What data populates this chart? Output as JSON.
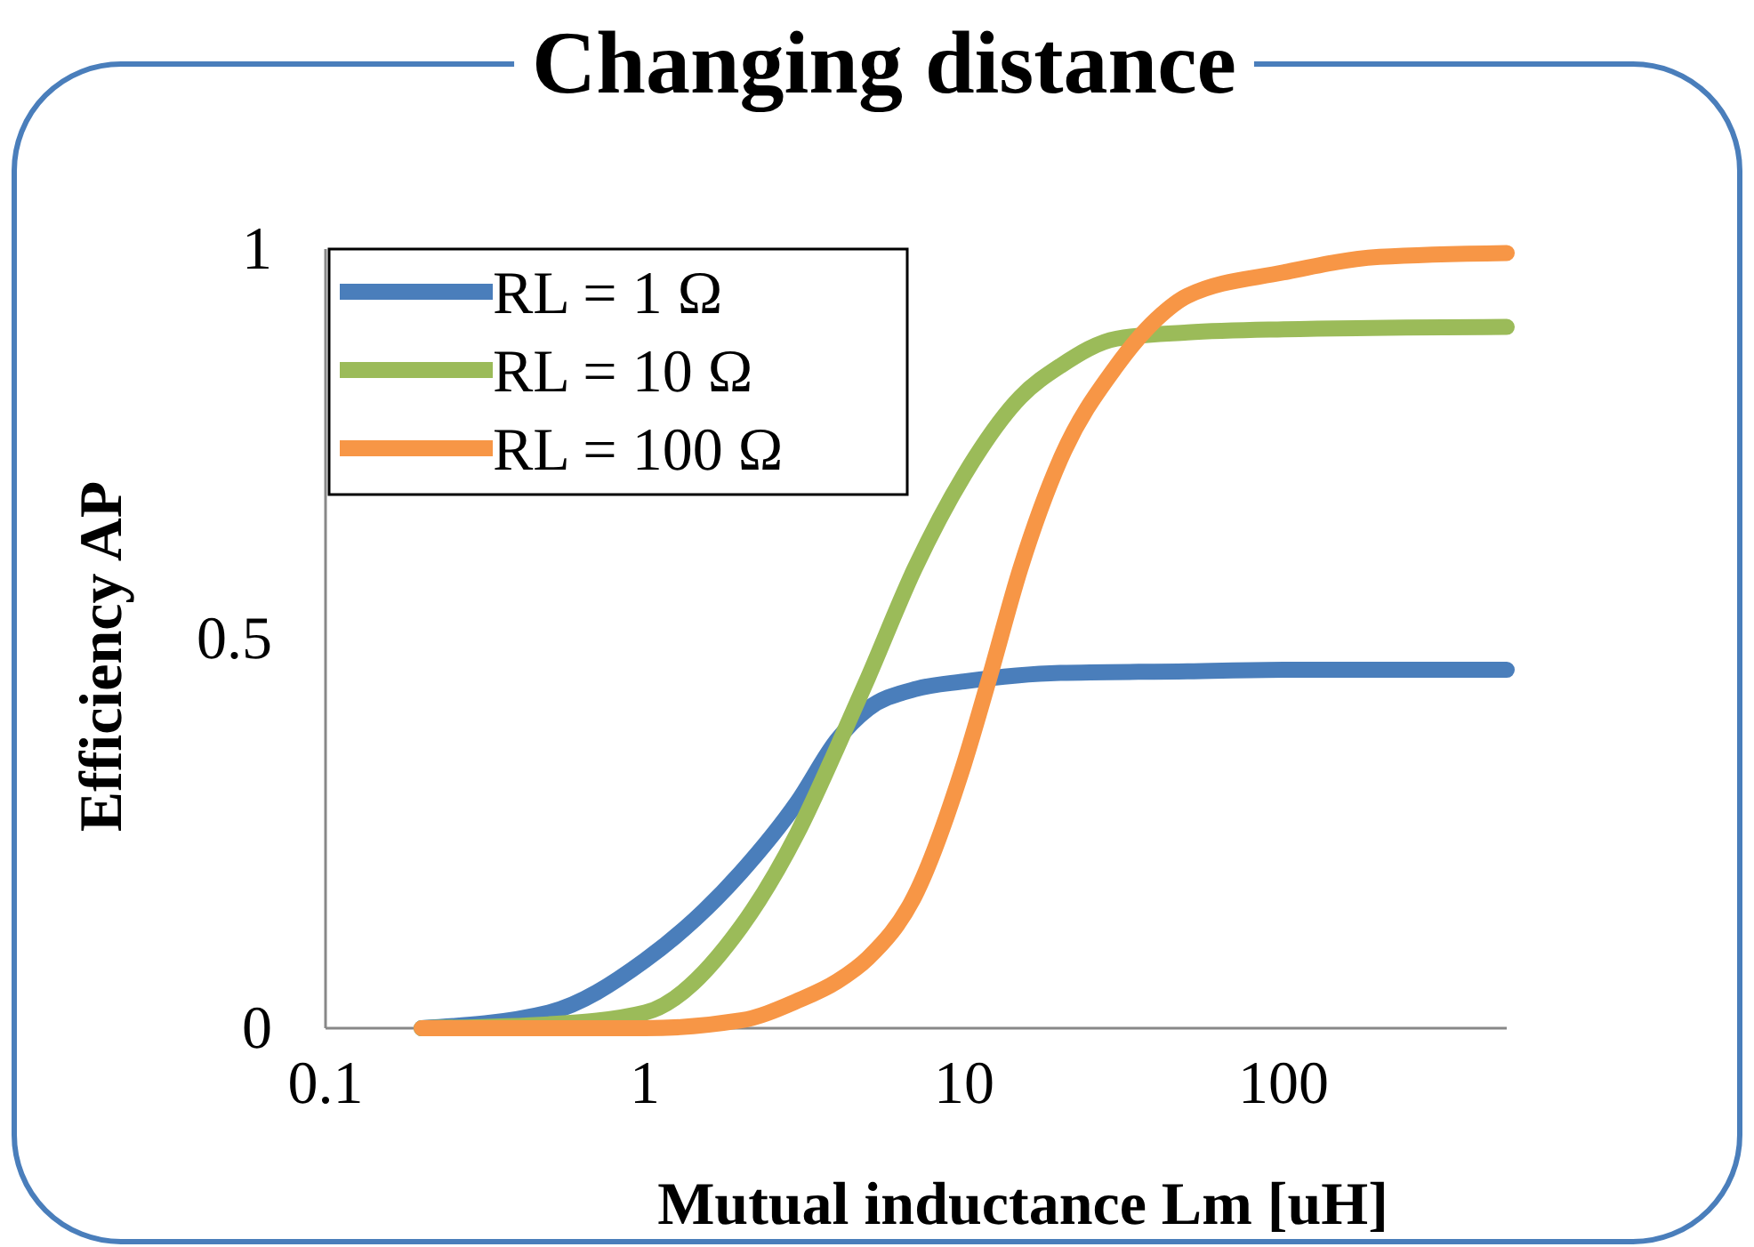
{
  "chart_data": {
    "type": "line",
    "title": "Changing distance",
    "xlabel": "Mutual inductance Lm [uH]",
    "ylabel": "Efficiency AP",
    "log": "x",
    "xlim": [
      0.1,
      500
    ],
    "xticks": [
      0.1,
      1,
      10,
      100
    ],
    "ylim": [
      0,
      1
    ],
    "yticks": [
      0,
      0.5,
      1
    ],
    "grid": false,
    "legend": "top left",
    "marker": "none",
    "line_style": "solid",
    "series": [
      {
        "name": "RL = 1 Ω",
        "color": "#4a7ebb",
        "x": [
          0.2,
          0.5,
          1,
          2,
          3,
          4,
          5,
          7,
          10,
          20,
          50,
          100,
          500
        ],
        "values": [
          0,
          0.02,
          0.087,
          0.2,
          0.29,
          0.37,
          0.41,
          0.435,
          0.445,
          0.456,
          0.458,
          0.46,
          0.46
        ]
      },
      {
        "name": "RL = 10 Ω",
        "color": "#9bbb59",
        "x": [
          0.2,
          0.5,
          1,
          2,
          3,
          4,
          5,
          7,
          10,
          15,
          20,
          30,
          50,
          100,
          500
        ],
        "values": [
          0,
          0.005,
          0.02,
          0.13,
          0.25,
          0.36,
          0.45,
          0.59,
          0.71,
          0.81,
          0.85,
          0.885,
          0.893,
          0.897,
          0.9
        ]
      },
      {
        "name": "RL = 100 Ω",
        "color": "#f79646",
        "x": [
          0.2,
          0.5,
          1,
          2,
          3,
          4,
          5,
          7,
          10,
          12,
          15,
          20,
          30,
          40,
          50,
          100,
          200,
          500
        ],
        "values": [
          0,
          0,
          0,
          0.01,
          0.035,
          0.06,
          0.09,
          0.17,
          0.34,
          0.45,
          0.59,
          0.73,
          0.85,
          0.91,
          0.94,
          0.97,
          0.99,
          0.995
        ]
      }
    ]
  }
}
